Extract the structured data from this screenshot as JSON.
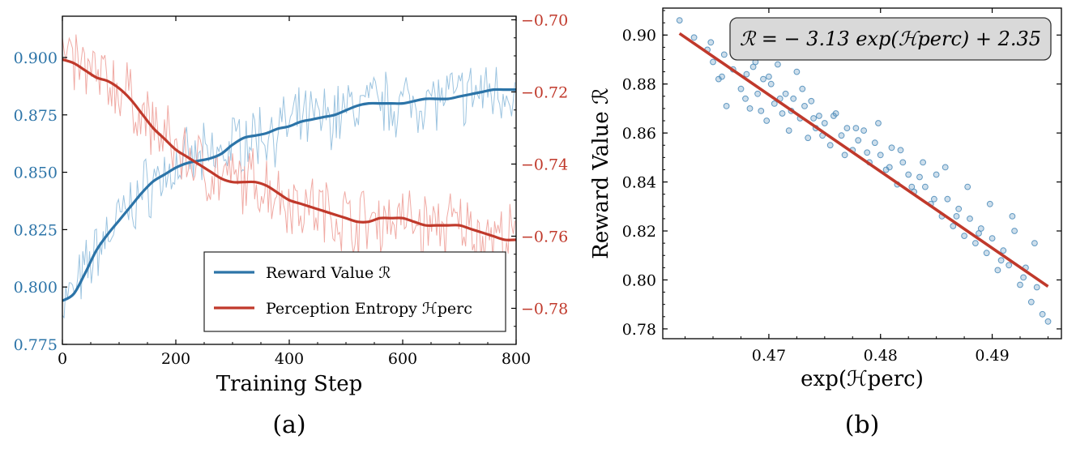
{
  "colors": {
    "reward": "#2c74a8",
    "entropy": "#c0392b",
    "reward_light": "#9cc4e0",
    "entropy_light": "#f0aaa4",
    "scatter": "#4a8ab8",
    "fit": "#c0392b"
  },
  "chart_data": [
    {
      "type": "line",
      "caption": "(a)",
      "xlabel": "Training Step",
      "xlim": [
        0,
        800
      ],
      "xticks": [
        0,
        200,
        400,
        600,
        800
      ],
      "ylim_left": [
        0.775,
        0.918
      ],
      "yticks_left": [
        0.775,
        0.8,
        0.825,
        0.85,
        0.875,
        0.9
      ],
      "ytick_labels_left": [
        "0.775",
        "0.800",
        "0.825",
        "0.850",
        "0.875",
        "0.900"
      ],
      "ylim_right": [
        -0.79,
        -0.699
      ],
      "yticks_right": [
        -0.78,
        -0.76,
        -0.74,
        -0.72,
        -0.7
      ],
      "ytick_labels_right": [
        "−0.78",
        "−0.76",
        "−0.74",
        "−0.72",
        "−0.70"
      ],
      "legend_position": "lower-right",
      "series": [
        {
          "name": "Reward Value ℛ",
          "axis": "left",
          "x": [
            0,
            20,
            40,
            60,
            80,
            100,
            120,
            140,
            160,
            180,
            200,
            220,
            240,
            260,
            280,
            300,
            320,
            340,
            360,
            380,
            400,
            420,
            440,
            460,
            480,
            500,
            520,
            540,
            560,
            580,
            600,
            620,
            640,
            660,
            680,
            700,
            720,
            740,
            760,
            780,
            800
          ],
          "values": [
            0.794,
            0.797,
            0.806,
            0.816,
            0.823,
            0.829,
            0.835,
            0.841,
            0.846,
            0.849,
            0.852,
            0.854,
            0.855,
            0.856,
            0.858,
            0.862,
            0.865,
            0.866,
            0.867,
            0.869,
            0.87,
            0.872,
            0.873,
            0.874,
            0.875,
            0.877,
            0.879,
            0.88,
            0.88,
            0.88,
            0.88,
            0.881,
            0.882,
            0.882,
            0.882,
            0.883,
            0.884,
            0.885,
            0.886,
            0.886,
            0.886
          ]
        },
        {
          "name": "Perception Entropy ℋperc",
          "axis": "right",
          "x": [
            0,
            20,
            40,
            60,
            80,
            100,
            120,
            140,
            160,
            180,
            200,
            220,
            240,
            260,
            280,
            300,
            320,
            340,
            360,
            380,
            400,
            420,
            440,
            460,
            480,
            500,
            520,
            540,
            560,
            580,
            600,
            620,
            640,
            660,
            680,
            700,
            720,
            740,
            760,
            780,
            800
          ],
          "values": [
            -0.711,
            -0.712,
            -0.714,
            -0.716,
            -0.717,
            -0.719,
            -0.722,
            -0.726,
            -0.73,
            -0.733,
            -0.736,
            -0.738,
            -0.74,
            -0.742,
            -0.744,
            -0.745,
            -0.745,
            -0.745,
            -0.746,
            -0.748,
            -0.75,
            -0.751,
            -0.752,
            -0.753,
            -0.754,
            -0.755,
            -0.756,
            -0.756,
            -0.755,
            -0.755,
            -0.755,
            -0.756,
            -0.757,
            -0.757,
            -0.757,
            -0.757,
            -0.758,
            -0.759,
            -0.76,
            -0.761,
            -0.761
          ]
        }
      ]
    },
    {
      "type": "scatter",
      "caption": "(b)",
      "xlabel": "exp(ℋperc)",
      "ylabel": "Reward Value ℛ",
      "xlim": [
        0.4605,
        0.4962
      ],
      "xticks": [
        0.47,
        0.48,
        0.49
      ],
      "ylim": [
        0.776,
        0.911
      ],
      "yticks": [
        0.78,
        0.8,
        0.82,
        0.84,
        0.86,
        0.88,
        0.9
      ],
      "annotation": "ℛ = − 3.13 exp(ℋperc) + 2.35",
      "fit": {
        "slope": -3.13,
        "intercept": 2.3467,
        "x_range": [
          0.462,
          0.495
        ]
      },
      "points_x": [
        0.462,
        0.4633,
        0.4645,
        0.465,
        0.4655,
        0.466,
        0.4662,
        0.4668,
        0.4672,
        0.4675,
        0.468,
        0.4683,
        0.4688,
        0.469,
        0.4695,
        0.4698,
        0.4702,
        0.4705,
        0.4708,
        0.4712,
        0.4715,
        0.4718,
        0.4722,
        0.4725,
        0.4728,
        0.4732,
        0.4735,
        0.4738,
        0.4742,
        0.4745,
        0.475,
        0.4755,
        0.476,
        0.4765,
        0.477,
        0.4775,
        0.478,
        0.4785,
        0.479,
        0.4795,
        0.48,
        0.4805,
        0.481,
        0.4815,
        0.482,
        0.4825,
        0.483,
        0.4835,
        0.484,
        0.4845,
        0.485,
        0.4855,
        0.486,
        0.4865,
        0.487,
        0.4875,
        0.488,
        0.4885,
        0.489,
        0.4895,
        0.49,
        0.4905,
        0.491,
        0.4915,
        0.492,
        0.4925,
        0.493,
        0.4935,
        0.494,
        0.4945,
        0.495,
        0.4648,
        0.4658,
        0.467,
        0.4679,
        0.4686,
        0.4693,
        0.47,
        0.471,
        0.472,
        0.473,
        0.474,
        0.4748,
        0.4758,
        0.4768,
        0.4778,
        0.4788,
        0.4798,
        0.4808,
        0.4818,
        0.4828,
        0.4838,
        0.4848,
        0.4858,
        0.4868,
        0.4878,
        0.4888,
        0.4898,
        0.4908,
        0.4918,
        0.4928,
        0.4938
      ],
      "points_y": [
        0.906,
        0.899,
        0.894,
        0.889,
        0.882,
        0.892,
        0.871,
        0.886,
        0.893,
        0.878,
        0.884,
        0.87,
        0.889,
        0.876,
        0.882,
        0.865,
        0.88,
        0.872,
        0.888,
        0.868,
        0.876,
        0.861,
        0.874,
        0.885,
        0.866,
        0.871,
        0.858,
        0.873,
        0.862,
        0.867,
        0.864,
        0.855,
        0.868,
        0.859,
        0.862,
        0.853,
        0.857,
        0.861,
        0.848,
        0.856,
        0.851,
        0.845,
        0.854,
        0.839,
        0.848,
        0.843,
        0.836,
        0.842,
        0.838,
        0.831,
        0.843,
        0.826,
        0.833,
        0.822,
        0.829,
        0.818,
        0.825,
        0.815,
        0.821,
        0.811,
        0.817,
        0.804,
        0.812,
        0.806,
        0.82,
        0.798,
        0.805,
        0.791,
        0.797,
        0.786,
        0.783,
        0.897,
        0.883,
        0.893,
        0.874,
        0.887,
        0.869,
        0.883,
        0.874,
        0.869,
        0.878,
        0.866,
        0.859,
        0.867,
        0.851,
        0.862,
        0.852,
        0.864,
        0.846,
        0.853,
        0.838,
        0.848,
        0.833,
        0.846,
        0.826,
        0.838,
        0.819,
        0.831,
        0.808,
        0.826,
        0.801,
        0.815
      ]
    }
  ]
}
